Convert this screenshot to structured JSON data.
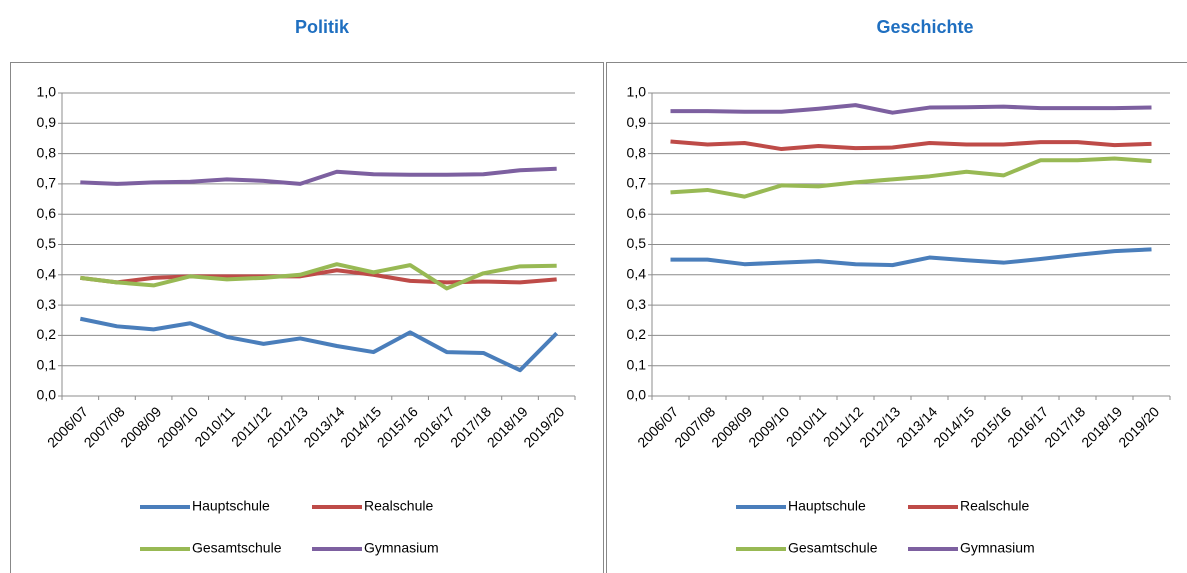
{
  "chart_data": [
    {
      "type": "line",
      "title": "Politik",
      "categories": [
        "2006/07",
        "2007/08",
        "2008/09",
        "2009/10",
        "2010/11",
        "2011/12",
        "2012/13",
        "2013/14",
        "2014/15",
        "2015/16",
        "2016/17",
        "2017/18",
        "2018/19",
        "2019/20"
      ],
      "ylim": [
        0,
        1
      ],
      "yticks": [
        {
          "value": 0,
          "label": "0,0"
        },
        {
          "value": 0.1,
          "label": "0,1"
        },
        {
          "value": 0.2,
          "label": "0,2"
        },
        {
          "value": 0.3,
          "label": "0,3"
        },
        {
          "value": 0.4,
          "label": "0,4"
        },
        {
          "value": 0.5,
          "label": "0,5"
        },
        {
          "value": 0.6,
          "label": "0,6"
        },
        {
          "value": 0.7,
          "label": "0,7"
        },
        {
          "value": 0.8,
          "label": "0,8"
        },
        {
          "value": 0.9,
          "label": "0,9"
        },
        {
          "value": 1.0,
          "label": "1,0"
        }
      ],
      "grid": true,
      "series": [
        {
          "name": "Hauptschule",
          "color": "#4a7ebb",
          "values": [
            0.255,
            0.23,
            0.22,
            0.24,
            0.195,
            0.172,
            0.19,
            0.165,
            0.145,
            0.21,
            0.145,
            0.142,
            0.085,
            0.207
          ]
        },
        {
          "name": "Realschule",
          "color": "#be4b48",
          "values": [
            0.39,
            0.375,
            0.39,
            0.395,
            0.395,
            0.395,
            0.395,
            0.415,
            0.4,
            0.38,
            0.375,
            0.378,
            0.375,
            0.385
          ]
        },
        {
          "name": "Gesamtschule",
          "color": "#98b954",
          "values": [
            0.39,
            0.375,
            0.365,
            0.395,
            0.385,
            0.39,
            0.4,
            0.435,
            0.408,
            0.432,
            0.355,
            0.405,
            0.428,
            0.43
          ]
        },
        {
          "name": "Gymnasium",
          "color": "#7d60a0",
          "values": [
            0.705,
            0.7,
            0.705,
            0.707,
            0.715,
            0.71,
            0.7,
            0.74,
            0.732,
            0.73,
            0.73,
            0.732,
            0.745,
            0.75
          ]
        }
      ]
    },
    {
      "type": "line",
      "title": "Geschichte",
      "categories": [
        "2006/07",
        "2007/08",
        "2008/09",
        "2009/10",
        "2010/11",
        "2011/12",
        "2012/13",
        "2013/14",
        "2014/15",
        "2015/16",
        "2016/17",
        "2017/18",
        "2018/19",
        "2019/20"
      ],
      "ylim": [
        0,
        1
      ],
      "yticks": [
        {
          "value": 0,
          "label": "0,0"
        },
        {
          "value": 0.1,
          "label": "0,1"
        },
        {
          "value": 0.2,
          "label": "0,2"
        },
        {
          "value": 0.3,
          "label": "0,3"
        },
        {
          "value": 0.4,
          "label": "0,4"
        },
        {
          "value": 0.5,
          "label": "0,5"
        },
        {
          "value": 0.6,
          "label": "0,6"
        },
        {
          "value": 0.7,
          "label": "0,7"
        },
        {
          "value": 0.8,
          "label": "0,8"
        },
        {
          "value": 0.9,
          "label": "0,9"
        },
        {
          "value": 1.0,
          "label": "1,0"
        }
      ],
      "grid": true,
      "series": [
        {
          "name": "Hauptschule",
          "color": "#4a7ebb",
          "values": [
            0.45,
            0.45,
            0.435,
            0.44,
            0.445,
            0.435,
            0.432,
            0.457,
            0.448,
            0.44,
            0.452,
            0.466,
            0.478,
            0.484
          ]
        },
        {
          "name": "Realschule",
          "color": "#be4b48",
          "values": [
            0.84,
            0.83,
            0.835,
            0.815,
            0.825,
            0.818,
            0.82,
            0.835,
            0.83,
            0.83,
            0.838,
            0.838,
            0.828,
            0.832
          ]
        },
        {
          "name": "Gesamtschule",
          "color": "#98b954",
          "values": [
            0.672,
            0.68,
            0.658,
            0.695,
            0.692,
            0.705,
            0.715,
            0.725,
            0.74,
            0.728,
            0.778,
            0.778,
            0.784,
            0.775
          ]
        },
        {
          "name": "Gymnasium",
          "color": "#7d60a0",
          "values": [
            0.94,
            0.94,
            0.938,
            0.938,
            0.948,
            0.96,
            0.935,
            0.952,
            0.953,
            0.955,
            0.95,
            0.95,
            0.95,
            0.952
          ]
        }
      ]
    }
  ]
}
